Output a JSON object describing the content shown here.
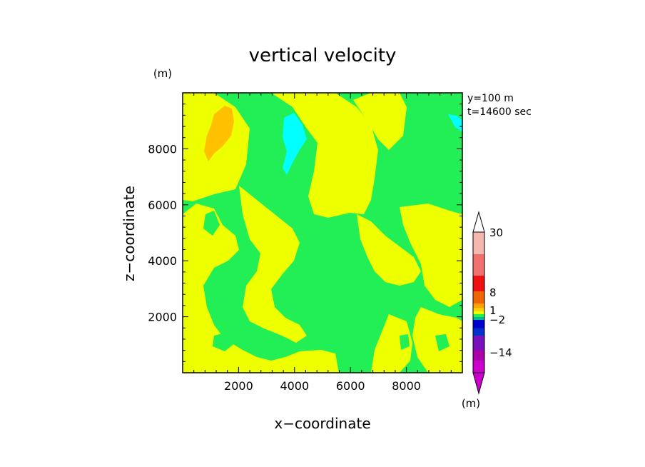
{
  "colors": {
    "green": "#22ee55",
    "yellow": "#eeff00",
    "cyan": "#00ffff",
    "orange": "#ffc000"
  },
  "chart_data": {
    "type": "heatmap",
    "title": "vertical velocity",
    "xlabel": "x−coordinate",
    "ylabel": "z−coordinate",
    "x_unit": "(m)",
    "y_unit": "(m)",
    "xlim": [
      0,
      10000
    ],
    "ylim": [
      0,
      10000
    ],
    "x_ticks": [
      2000,
      4000,
      6000,
      8000
    ],
    "y_ticks": [
      2000,
      4000,
      6000,
      8000
    ],
    "annotations": [
      "y=100  m",
      "t=14600 sec"
    ],
    "colorbar": {
      "labels": [
        "30",
        "8",
        "1",
        "−2",
        "−14"
      ],
      "colors": [
        "#f4b8b0",
        "#f07070",
        "#ee1111",
        "#ee6600",
        "#ffa000",
        "#ffd000",
        "#eeff00",
        "#22ee55",
        "#00bb88",
        "#0000cc",
        "#0033cc",
        "#7711bb",
        "#aa00aa",
        "#cc00cc"
      ]
    }
  }
}
